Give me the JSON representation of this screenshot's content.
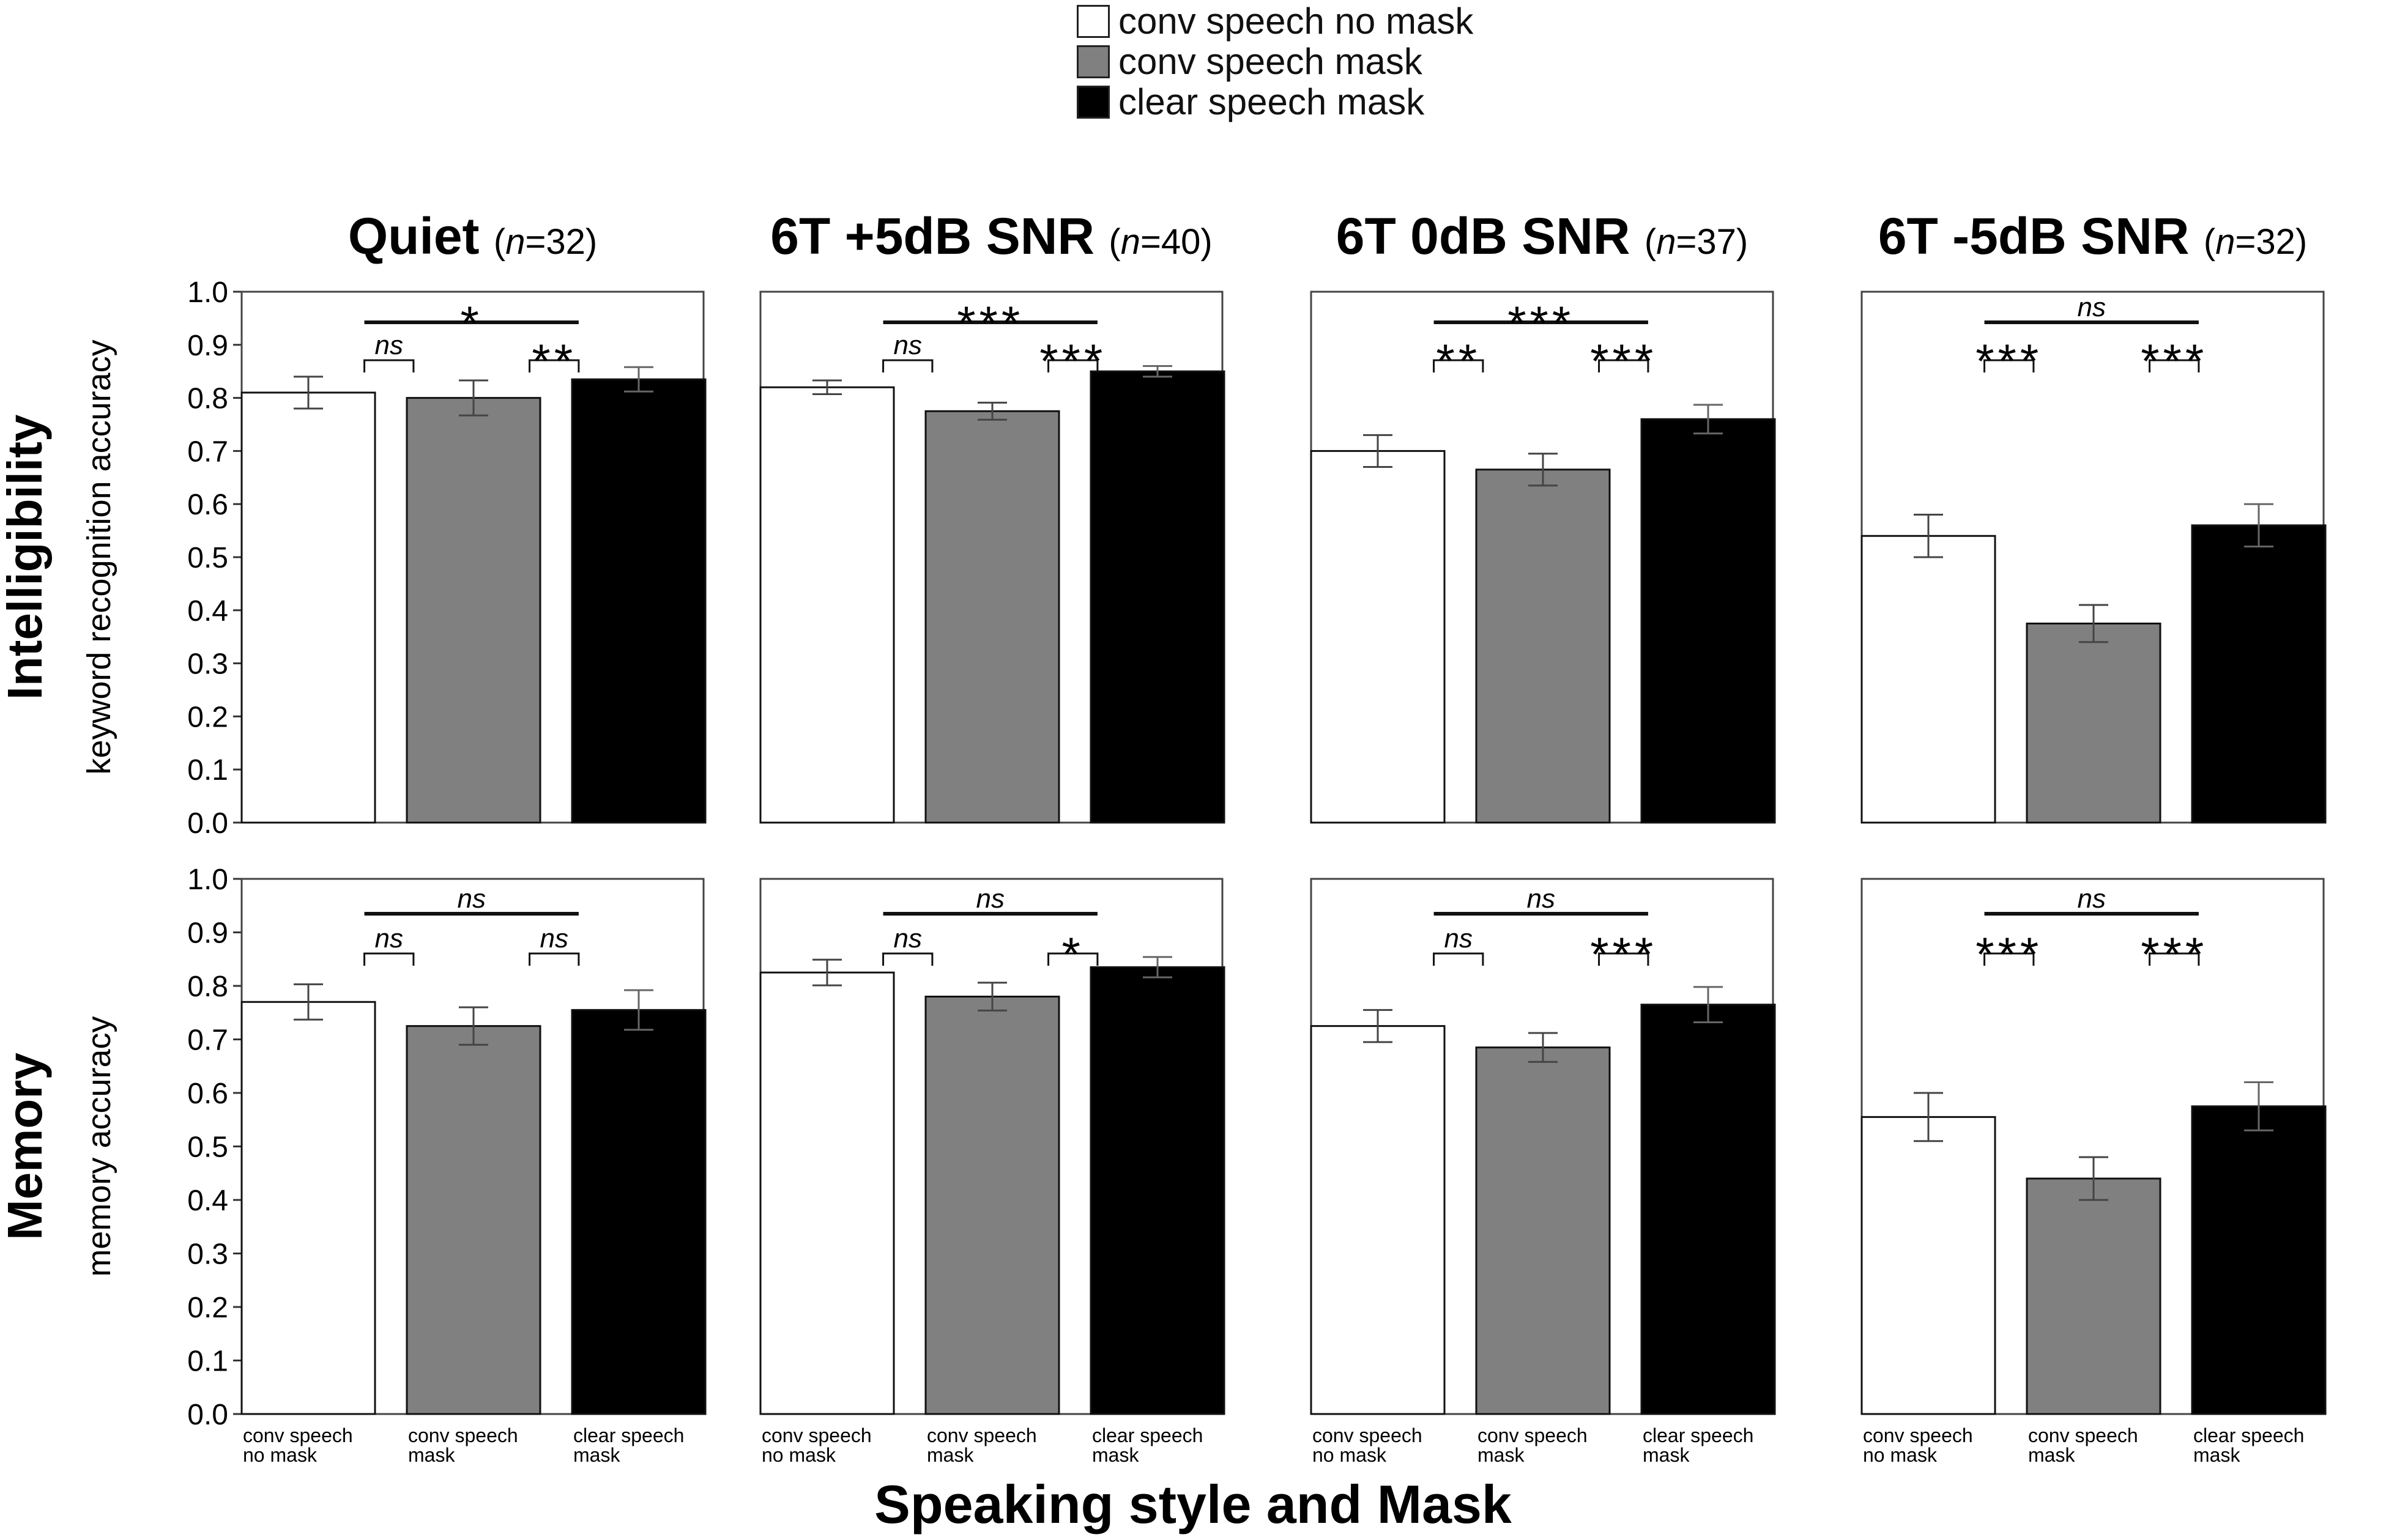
{
  "legend": {
    "items": [
      {
        "label": "conv speech no mask",
        "color": "#ffffff"
      },
      {
        "label": "conv speech mask",
        "color": "#808080"
      },
      {
        "label": "clear speech mask",
        "color": "#000000"
      }
    ]
  },
  "xlabel": "Speaking style and Mask",
  "row_labels": [
    "Intelligibility",
    "Memory"
  ],
  "ylabels": [
    "keyword recognition accuracy",
    "memory accuracy"
  ],
  "yticks": [
    "0.0",
    "0.1",
    "0.2",
    "0.3",
    "0.4",
    "0.5",
    "0.6",
    "0.7",
    "0.8",
    "0.9",
    "1.0"
  ],
  "panel_titles": [
    {
      "main": "Quiet",
      "n_italic": "n",
      "n_value": "=32"
    },
    {
      "main": "6T +5dB SNR",
      "n_italic": "n",
      "n_value": "=40"
    },
    {
      "main": "6T 0dB SNR",
      "n_italic": "n",
      "n_value": "=37"
    },
    {
      "main": "6T -5dB SNR",
      "n_italic": "n",
      "n_value": "=32"
    }
  ],
  "category_labels": [
    [
      "conv speech",
      "no mask"
    ],
    [
      "conv speech",
      "mask"
    ],
    [
      "clear speech",
      "mask"
    ]
  ],
  "chart_data": {
    "type": "bar",
    "categories": [
      "conv speech no mask",
      "conv speech mask",
      "clear speech mask"
    ],
    "ylim": [
      0,
      1
    ],
    "colors": [
      "#ffffff",
      "#808080",
      "#000000"
    ],
    "panels": [
      {
        "row": 0,
        "col": 0,
        "values": [
          0.81,
          0.8,
          0.835
        ],
        "errors": [
          0.03,
          0.033,
          0.023
        ],
        "annotations": [
          {
            "from": 0,
            "to": 2,
            "label": "*",
            "level": "top"
          },
          {
            "from": 0,
            "to": 1,
            "label": "ns",
            "level": "low"
          },
          {
            "from": 1,
            "to": 2,
            "label": "**",
            "level": "low"
          }
        ]
      },
      {
        "row": 0,
        "col": 1,
        "values": [
          0.82,
          0.775,
          0.85
        ],
        "errors": [
          0.013,
          0.016,
          0.01
        ],
        "annotations": [
          {
            "from": 0,
            "to": 2,
            "label": "***",
            "level": "top"
          },
          {
            "from": 0,
            "to": 1,
            "label": "ns",
            "level": "low"
          },
          {
            "from": 1,
            "to": 2,
            "label": "***",
            "level": "low"
          }
        ]
      },
      {
        "row": 0,
        "col": 2,
        "values": [
          0.7,
          0.665,
          0.76
        ],
        "errors": [
          0.03,
          0.03,
          0.027
        ],
        "annotations": [
          {
            "from": 0,
            "to": 2,
            "label": "***",
            "level": "top"
          },
          {
            "from": 0,
            "to": 1,
            "label": "**",
            "level": "low"
          },
          {
            "from": 1,
            "to": 2,
            "label": "***",
            "level": "low"
          }
        ]
      },
      {
        "row": 0,
        "col": 3,
        "values": [
          0.54,
          0.375,
          0.56
        ],
        "errors": [
          0.04,
          0.035,
          0.04
        ],
        "annotations": [
          {
            "from": 0,
            "to": 2,
            "label": "ns",
            "level": "top"
          },
          {
            "from": 0,
            "to": 1,
            "label": "***",
            "level": "low"
          },
          {
            "from": 1,
            "to": 2,
            "label": "***",
            "level": "low"
          }
        ]
      },
      {
        "row": 1,
        "col": 0,
        "values": [
          0.77,
          0.725,
          0.755
        ],
        "errors": [
          0.033,
          0.035,
          0.037
        ],
        "annotations": [
          {
            "from": 0,
            "to": 2,
            "label": "ns",
            "level": "top"
          },
          {
            "from": 0,
            "to": 1,
            "label": "ns",
            "level": "low"
          },
          {
            "from": 1,
            "to": 2,
            "label": "ns",
            "level": "low"
          }
        ]
      },
      {
        "row": 1,
        "col": 1,
        "values": [
          0.825,
          0.78,
          0.835
        ],
        "errors": [
          0.024,
          0.026,
          0.019
        ],
        "annotations": [
          {
            "from": 0,
            "to": 2,
            "label": "ns",
            "level": "top"
          },
          {
            "from": 0,
            "to": 1,
            "label": "ns",
            "level": "low"
          },
          {
            "from": 1,
            "to": 2,
            "label": "*",
            "level": "low"
          }
        ]
      },
      {
        "row": 1,
        "col": 2,
        "values": [
          0.725,
          0.685,
          0.765
        ],
        "errors": [
          0.03,
          0.027,
          0.033
        ],
        "annotations": [
          {
            "from": 0,
            "to": 2,
            "label": "ns",
            "level": "top"
          },
          {
            "from": 0,
            "to": 1,
            "label": "ns",
            "level": "low"
          },
          {
            "from": 1,
            "to": 2,
            "label": "***",
            "level": "low"
          }
        ]
      },
      {
        "row": 1,
        "col": 3,
        "values": [
          0.555,
          0.44,
          0.575
        ],
        "errors": [
          0.045,
          0.04,
          0.045
        ],
        "annotations": [
          {
            "from": 0,
            "to": 2,
            "label": "ns",
            "level": "top"
          },
          {
            "from": 0,
            "to": 1,
            "label": "***",
            "level": "low"
          },
          {
            "from": 1,
            "to": 2,
            "label": "***",
            "level": "low"
          }
        ]
      }
    ]
  }
}
